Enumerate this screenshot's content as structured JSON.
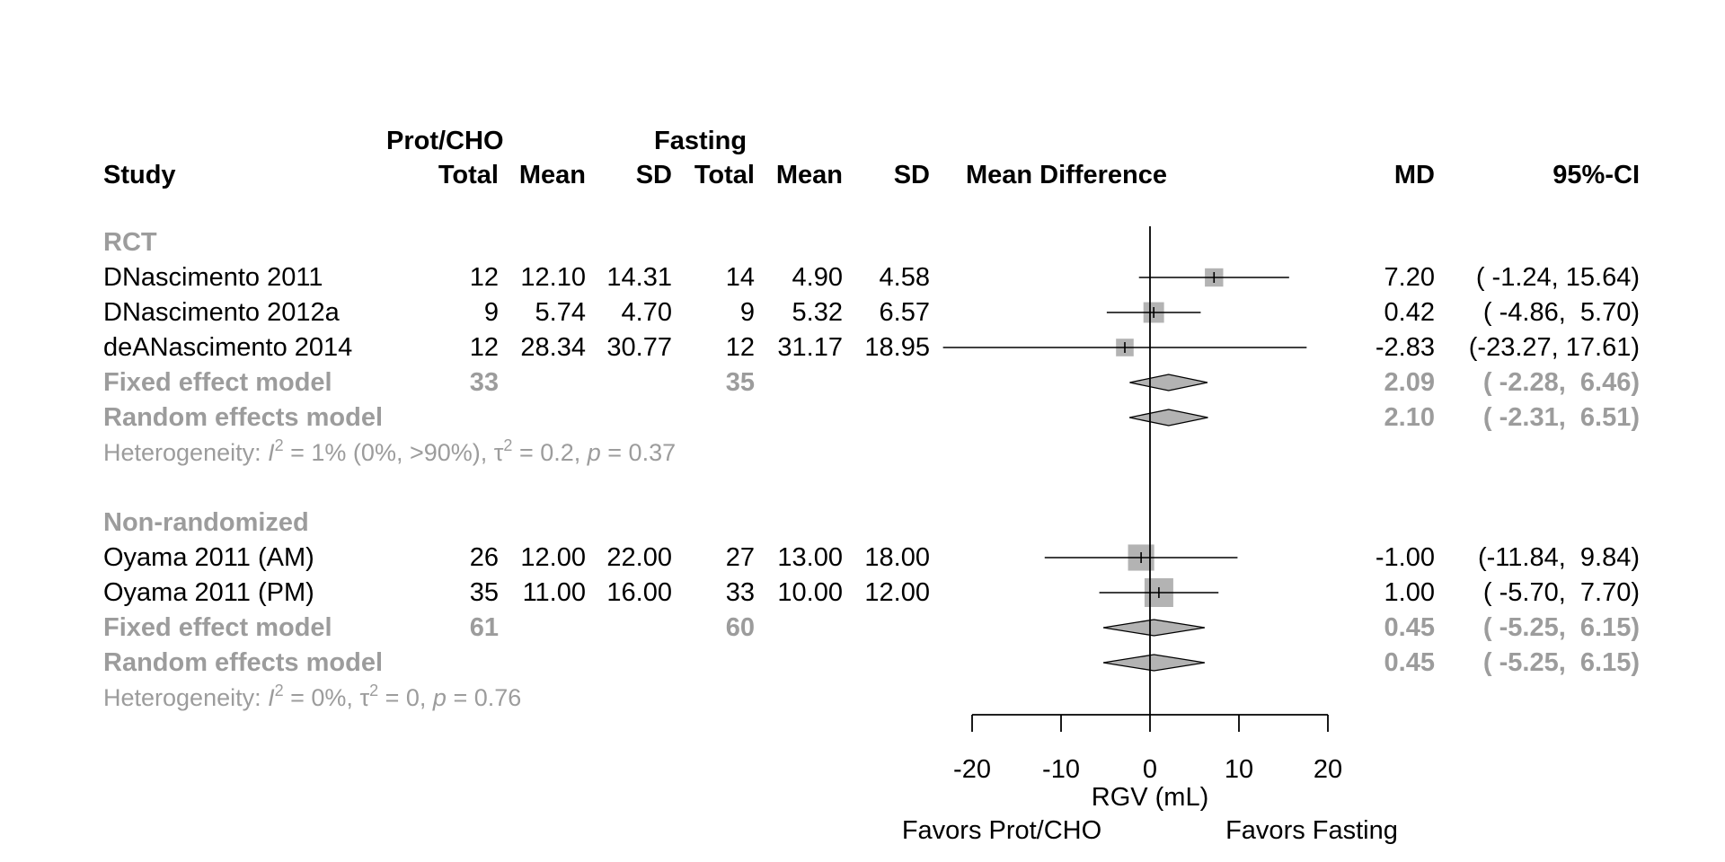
{
  "headers": {
    "group1": "Prot/CHO",
    "group2": "Fasting",
    "study": "Study",
    "total": "Total",
    "mean": "Mean",
    "sd": "SD",
    "effect": "Mean Difference",
    "md": "MD",
    "ci": "95%-CI"
  },
  "subgroups": [
    {
      "label": "RCT",
      "studies": [
        {
          "name": "DNascimento 2011",
          "e_total": "12",
          "e_mean": "12.10",
          "e_sd": "14.31",
          "c_total": "14",
          "c_mean": "4.90",
          "c_sd": "4.58",
          "md": "7.20",
          "ci": "( -1.24, 15.64)"
        },
        {
          "name": "DNascimento 2012a",
          "e_total": "9",
          "e_mean": "5.74",
          "e_sd": "4.70",
          "c_total": "9",
          "c_mean": "5.32",
          "c_sd": "6.57",
          "md": "0.42",
          "ci": "( -4.86,  5.70)"
        },
        {
          "name": "deANascimento 2014",
          "e_total": "12",
          "e_mean": "28.34",
          "e_sd": "30.77",
          "c_total": "12",
          "c_mean": "31.17",
          "c_sd": "18.95",
          "md": "-2.83",
          "ci": "(-23.27, 17.61)"
        }
      ],
      "fixed": {
        "label": "Fixed effect model",
        "e_total": "33",
        "c_total": "35",
        "md": "2.09",
        "ci": "( -2.28,  6.46)"
      },
      "random": {
        "label": "Random effects model",
        "md": "2.10",
        "ci": "( -2.31,  6.51)"
      },
      "het": {
        "prefix": "Heterogeneity: ",
        "I": "I",
        "sup1": "2",
        "mid": " = 1% (0%, >90%), τ",
        "sup2": "2",
        "mid2": " = 0.2, ",
        "p": "p",
        "end": " = 0.37"
      }
    },
    {
      "label": "Non-randomized",
      "studies": [
        {
          "name": "Oyama 2011 (AM)",
          "e_total": "26",
          "e_mean": "12.00",
          "e_sd": "22.00",
          "c_total": "27",
          "c_mean": "13.00",
          "c_sd": "18.00",
          "md": "-1.00",
          "ci": "(-11.84,  9.84)"
        },
        {
          "name": "Oyama 2011 (PM)",
          "e_total": "35",
          "e_mean": "11.00",
          "e_sd": "16.00",
          "c_total": "33",
          "c_mean": "10.00",
          "c_sd": "12.00",
          "md": "1.00",
          "ci": "( -5.70,  7.70)"
        }
      ],
      "fixed": {
        "label": "Fixed effect model",
        "e_total": "61",
        "c_total": "60",
        "md": "0.45",
        "ci": "( -5.25,  6.15)"
      },
      "random": {
        "label": "Random effects model",
        "md": "0.45",
        "ci": "( -5.25,  6.15)"
      },
      "het": {
        "prefix": "Heterogeneity: ",
        "I": "I",
        "sup1": "2",
        "mid": " = 0%, τ",
        "sup2": "2",
        "mid2": " = 0, ",
        "p": "p",
        "end": " = 0.76"
      }
    }
  ],
  "axis": {
    "xlabel": "RGV (mL)",
    "ticks": [
      "-20",
      "-10",
      "0",
      "10",
      "20"
    ],
    "favors_left": "Favors Prot/CHO",
    "favors_right": "Favors Fasting"
  },
  "chart_data": {
    "type": "forest",
    "xlim": [
      -20,
      20
    ],
    "xlabel": "RGV (mL)",
    "ticks": [
      -20,
      -10,
      0,
      10,
      20
    ],
    "colors": {
      "square": "#b3b3b3",
      "diamond": "#b3b3b3",
      "line": "#000000",
      "summary_text": "#9c9c9c"
    },
    "studies": [
      {
        "name": "DNascimento 2011",
        "subgroup": "RCT",
        "md": 7.2,
        "lower": -1.24,
        "upper": 15.64
      },
      {
        "name": "DNascimento 2012a",
        "subgroup": "RCT",
        "md": 0.42,
        "lower": -4.86,
        "upper": 5.7
      },
      {
        "name": "deANascimento 2014",
        "subgroup": "RCT",
        "md": -2.83,
        "lower": -23.27,
        "upper": 17.61
      },
      {
        "name": "Oyama 2011 (AM)",
        "subgroup": "Non-randomized",
        "md": -1.0,
        "lower": -11.84,
        "upper": 9.84
      },
      {
        "name": "Oyama 2011 (PM)",
        "subgroup": "Non-randomized",
        "md": 1.0,
        "lower": -5.7,
        "upper": 7.7
      }
    ],
    "summaries": [
      {
        "subgroup": "RCT",
        "model": "fixed",
        "md": 2.09,
        "lower": -2.28,
        "upper": 6.46
      },
      {
        "subgroup": "RCT",
        "model": "random",
        "md": 2.1,
        "lower": -2.31,
        "upper": 6.51
      },
      {
        "subgroup": "Non-randomized",
        "model": "fixed",
        "md": 0.45,
        "lower": -5.25,
        "upper": 6.15
      },
      {
        "subgroup": "Non-randomized",
        "model": "random",
        "md": 0.45,
        "lower": -5.25,
        "upper": 6.15
      }
    ]
  }
}
